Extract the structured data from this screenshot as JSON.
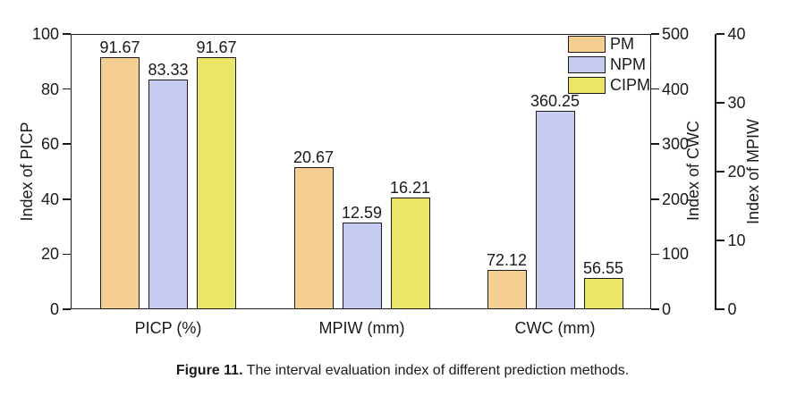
{
  "figure": {
    "caption_bold": "Figure 11.",
    "caption_text": " The interval evaluation index of different prediction methods."
  },
  "chart_data": {
    "type": "bar",
    "categories": [
      "PICP (%)",
      "MPIW (mm)",
      "CWC (mm)"
    ],
    "series": [
      {
        "name": "PM",
        "color": "#F5CE92",
        "values": [
          91.67,
          20.67,
          72.12
        ]
      },
      {
        "name": "NPM",
        "color": "#C6CBF2",
        "values": [
          83.33,
          12.59,
          360.25
        ]
      },
      {
        "name": "CIPM",
        "color": "#EBE666",
        "values": [
          91.67,
          16.21,
          56.55
        ]
      }
    ],
    "bar_labels": [
      [
        "91.67",
        "83.33",
        "91.67"
      ],
      [
        "20.67",
        "12.59",
        "16.21"
      ],
      [
        "72.12",
        "360.25",
        "56.55"
      ]
    ],
    "axes": {
      "left": {
        "label": "Index of PICP",
        "min": 0,
        "max": 100,
        "ticks": [
          "0",
          "20",
          "40",
          "60",
          "80",
          "100"
        ],
        "applies_to_category": "PICP (%)"
      },
      "right_inner": {
        "label": "Index of CWC",
        "min": 0,
        "max": 500,
        "ticks": [
          "0",
          "100",
          "200",
          "300",
          "400",
          "500"
        ],
        "applies_to_category": "CWC (mm)"
      },
      "right_outer": {
        "label": "Index of MPIW",
        "min": 0,
        "max": 40,
        "ticks": [
          "0",
          "10",
          "20",
          "30",
          "40"
        ],
        "applies_to_category": "MPIW (mm)"
      }
    },
    "category_axis_for_scaling": [
      "left",
      "right_outer",
      "right_inner"
    ],
    "legend": {
      "position": "top-right",
      "entries": [
        "PM",
        "NPM",
        "CIPM"
      ]
    },
    "grid": false,
    "styles": {
      "ink_color": "#1a1a1a",
      "background": "#ffffff"
    }
  }
}
